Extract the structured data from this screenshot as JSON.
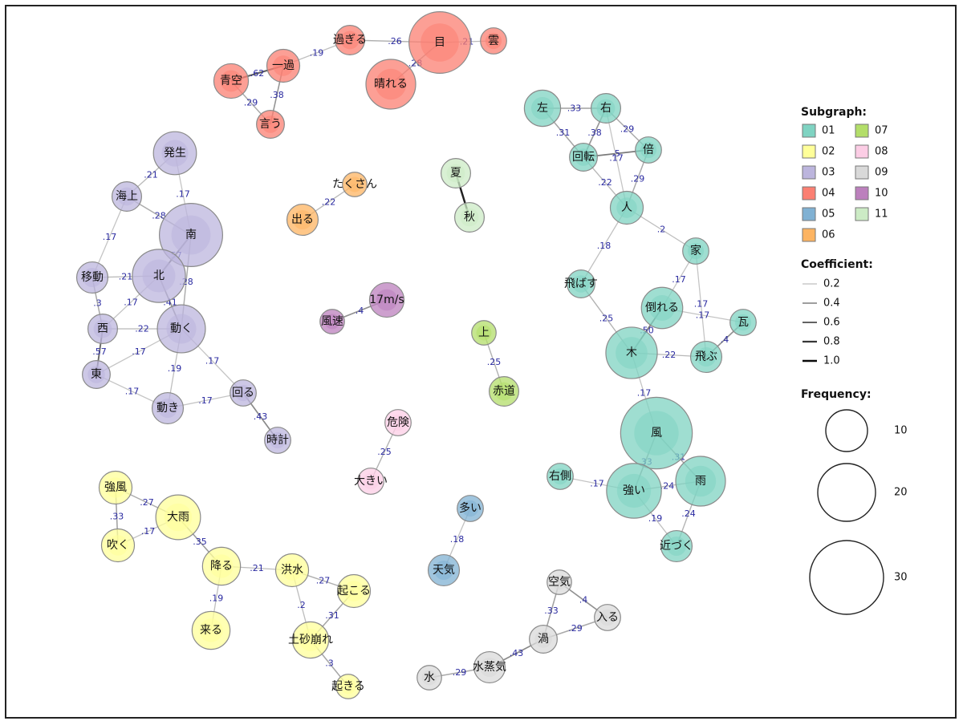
{
  "subgraph_colors": {
    "01": "#7fd3c2",
    "02": "#ffff99",
    "03": "#bcb5dd",
    "04": "#fb7f72",
    "05": "#80b1d3",
    "06": "#fdb462",
    "07": "#b3de69",
    "08": "#fccde5",
    "09": "#d9d9d9",
    "10": "#bc80bd",
    "11": "#ccebc5"
  },
  "nodes": [
    {
      "label": "目",
      "group": "04",
      "freq": 27
    },
    {
      "label": "雲",
      "group": "04",
      "freq": 6
    },
    {
      "label": "過ぎる",
      "group": "04",
      "freq": 8
    },
    {
      "label": "晴れる",
      "group": "04",
      "freq": 20
    },
    {
      "label": "一過",
      "group": "04",
      "freq": 10
    },
    {
      "label": "青空",
      "group": "04",
      "freq": 11
    },
    {
      "label": "言う",
      "group": "04",
      "freq": 7
    },
    {
      "label": "左",
      "group": "01",
      "freq": 12
    },
    {
      "label": "右",
      "group": "01",
      "freq": 8
    },
    {
      "label": "倍",
      "group": "01",
      "freq": 6
    },
    {
      "label": "回転",
      "group": "01",
      "freq": 7
    },
    {
      "label": "人",
      "group": "01",
      "freq": 10
    },
    {
      "label": "家",
      "group": "01",
      "freq": 6
    },
    {
      "label": "飛ばす",
      "group": "01",
      "freq": 7
    },
    {
      "label": "倒れる",
      "group": "01",
      "freq": 15
    },
    {
      "label": "瓦",
      "group": "01",
      "freq": 6
    },
    {
      "label": "木",
      "group": "01",
      "freq": 21
    },
    {
      "label": "飛ぶ",
      "group": "01",
      "freq": 9
    },
    {
      "label": "風",
      "group": "01",
      "freq": 33
    },
    {
      "label": "右側",
      "group": "01",
      "freq": 6
    },
    {
      "label": "強い",
      "group": "01",
      "freq": 23
    },
    {
      "label": "雨",
      "group": "01",
      "freq": 20
    },
    {
      "label": "近づく",
      "group": "01",
      "freq": 9
    },
    {
      "label": "発生",
      "group": "03",
      "freq": 16
    },
    {
      "label": "海上",
      "group": "03",
      "freq": 8
    },
    {
      "label": "南",
      "group": "03",
      "freq": 28
    },
    {
      "label": "北",
      "group": "03",
      "freq": 22
    },
    {
      "label": "移動",
      "group": "03",
      "freq": 9
    },
    {
      "label": "西",
      "group": "03",
      "freq": 8
    },
    {
      "label": "動く",
      "group": "03",
      "freq": 19
    },
    {
      "label": "東",
      "group": "03",
      "freq": 7
    },
    {
      "label": "動き",
      "group": "03",
      "freq": 9
    },
    {
      "label": "回る",
      "group": "03",
      "freq": 6
    },
    {
      "label": "時計",
      "group": "03",
      "freq": 6
    },
    {
      "label": "たくさん",
      "group": "06",
      "freq": 5
    },
    {
      "label": "出る",
      "group": "06",
      "freq": 9
    },
    {
      "label": "夏",
      "group": "11",
      "freq": 8
    },
    {
      "label": "秋",
      "group": "11",
      "freq": 8
    },
    {
      "label": "17m/s",
      "group": "10",
      "freq": 11
    },
    {
      "label": "風速",
      "group": "10",
      "freq": 5
    },
    {
      "label": "上",
      "group": "07",
      "freq": 5
    },
    {
      "label": "赤道",
      "group": "07",
      "freq": 8
    },
    {
      "label": "危険",
      "group": "08",
      "freq": 6
    },
    {
      "label": "大きい",
      "group": "08",
      "freq": 6
    },
    {
      "label": "多い",
      "group": "05",
      "freq": 6
    },
    {
      "label": "天気",
      "group": "05",
      "freq": 9
    },
    {
      "label": "強風",
      "group": "02",
      "freq": 10
    },
    {
      "label": "大雨",
      "group": "02",
      "freq": 17
    },
    {
      "label": "吹く",
      "group": "02",
      "freq": 10
    },
    {
      "label": "降る",
      "group": "02",
      "freq": 13
    },
    {
      "label": "洪水",
      "group": "02",
      "freq": 10
    },
    {
      "label": "起こる",
      "group": "02",
      "freq": 10
    },
    {
      "label": "来る",
      "group": "02",
      "freq": 13
    },
    {
      "label": "土砂崩れ",
      "group": "02",
      "freq": 12
    },
    {
      "label": "起きる",
      "group": "02",
      "freq": 5
    },
    {
      "label": "空気",
      "group": "09",
      "freq": 5
    },
    {
      "label": "入る",
      "group": "09",
      "freq": 6
    },
    {
      "label": "渦",
      "group": "09",
      "freq": 7
    },
    {
      "label": "水蒸気",
      "group": "09",
      "freq": 9
    },
    {
      "label": "水",
      "group": "09",
      "freq": 5
    }
  ],
  "edges": [
    {
      "source": "目",
      "target": "雲",
      "coef": 0.21,
      "label": ".21"
    },
    {
      "source": "目",
      "target": "過ぎる",
      "coef": 0.26,
      "label": ".26"
    },
    {
      "source": "目",
      "target": "晴れる",
      "coef": 0.28,
      "label": ".28"
    },
    {
      "source": "過ぎる",
      "target": "一過",
      "coef": 0.19,
      "label": ".19"
    },
    {
      "source": "一過",
      "target": "青空",
      "coef": 0.62,
      "label": ".62"
    },
    {
      "source": "一過",
      "target": "言う",
      "coef": 0.38,
      "label": ".38"
    },
    {
      "source": "青空",
      "target": "言う",
      "coef": 0.29,
      "label": ".29"
    },
    {
      "source": "左",
      "target": "右",
      "coef": 0.33,
      "label": ".33"
    },
    {
      "source": "左",
      "target": "回転",
      "coef": 0.31,
      "label": ".31"
    },
    {
      "source": "右",
      "target": "回転",
      "coef": 0.38,
      "label": ".38"
    },
    {
      "source": "右",
      "target": "倍",
      "coef": 0.29,
      "label": ".29"
    },
    {
      "source": "回転",
      "target": "倍",
      "coef": 0.5,
      "label": ".5"
    },
    {
      "source": "右",
      "target": "人",
      "coef": 0.17,
      "label": ".17"
    },
    {
      "source": "倍",
      "target": "人",
      "coef": 0.29,
      "label": ".29"
    },
    {
      "source": "回転",
      "target": "人",
      "coef": 0.22,
      "label": ".22"
    },
    {
      "source": "人",
      "target": "家",
      "coef": 0.2,
      "label": ".2"
    },
    {
      "source": "人",
      "target": "飛ばす",
      "coef": 0.18,
      "label": ".18"
    },
    {
      "source": "家",
      "target": "倒れる",
      "coef": 0.17,
      "label": ".17"
    },
    {
      "source": "家",
      "target": "飛ぶ",
      "coef": 0.17,
      "label": ".17"
    },
    {
      "source": "倒れる",
      "target": "瓦",
      "coef": 0.17,
      "label": ".17"
    },
    {
      "source": "瓦",
      "target": "飛ぶ",
      "coef": 0.4,
      "label": ".4"
    },
    {
      "source": "飛ばす",
      "target": "木",
      "coef": 0.25,
      "label": ".25"
    },
    {
      "source": "倒れる",
      "target": "木",
      "coef": 0.5,
      "label": ".50"
    },
    {
      "source": "木",
      "target": "飛ぶ",
      "coef": 0.22,
      "label": ".22"
    },
    {
      "source": "木",
      "target": "風",
      "coef": 0.17,
      "label": ".17"
    },
    {
      "source": "風",
      "target": "強い",
      "coef": 0.33,
      "label": ".33"
    },
    {
      "source": "風",
      "target": "雨",
      "coef": 0.31,
      "label": ".31"
    },
    {
      "source": "右側",
      "target": "強い",
      "coef": 0.17,
      "label": ".17"
    },
    {
      "source": "強い",
      "target": "雨",
      "coef": 0.24,
      "label": ".24"
    },
    {
      "source": "強い",
      "target": "近づく",
      "coef": 0.19,
      "label": ".19"
    },
    {
      "source": "雨",
      "target": "近づく",
      "coef": 0.24,
      "label": ".24"
    },
    {
      "source": "発生",
      "target": "海上",
      "coef": 0.21,
      "label": ".21"
    },
    {
      "source": "発生",
      "target": "南",
      "coef": 0.17,
      "label": ".17"
    },
    {
      "source": "海上",
      "target": "南",
      "coef": 0.28,
      "label": ".28"
    },
    {
      "source": "海上",
      "target": "移動",
      "coef": 0.17,
      "label": ".17"
    },
    {
      "source": "南",
      "target": "北",
      "coef": 0.57,
      "label": ".57"
    },
    {
      "source": "南",
      "target": "動く",
      "coef": 0.28,
      "label": ".28"
    },
    {
      "source": "移動",
      "target": "北",
      "coef": 0.21,
      "label": ".21"
    },
    {
      "source": "移動",
      "target": "西",
      "coef": 0.3,
      "label": ".3"
    },
    {
      "source": "北",
      "target": "西",
      "coef": 0.17,
      "label": ".17"
    },
    {
      "source": "北",
      "target": "動く",
      "coef": 0.41,
      "label": ".41"
    },
    {
      "source": "西",
      "target": "動く",
      "coef": 0.22,
      "label": ".22"
    },
    {
      "source": "西",
      "target": "東",
      "coef": 0.57,
      "label": ".57"
    },
    {
      "source": "東",
      "target": "動く",
      "coef": 0.17,
      "label": ".17"
    },
    {
      "source": "東",
      "target": "動き",
      "coef": 0.17,
      "label": ".17"
    },
    {
      "source": "動く",
      "target": "動き",
      "coef": 0.19,
      "label": ".19"
    },
    {
      "source": "動く",
      "target": "回る",
      "coef": 0.17,
      "label": ".17"
    },
    {
      "source": "動き",
      "target": "回る",
      "coef": 0.17,
      "label": ".17"
    },
    {
      "source": "回る",
      "target": "時計",
      "coef": 0.43,
      "label": ".43"
    },
    {
      "source": "出る",
      "target": "たくさん",
      "coef": 0.22,
      "label": ".22"
    },
    {
      "source": "夏",
      "target": "秋",
      "coef": 0.9,
      "label": ""
    },
    {
      "source": "風速",
      "target": "17m/s",
      "coef": 0.4,
      "label": ".4"
    },
    {
      "source": "上",
      "target": "赤道",
      "coef": 0.25,
      "label": ".25"
    },
    {
      "source": "危険",
      "target": "大きい",
      "coef": 0.25,
      "label": ".25"
    },
    {
      "source": "多い",
      "target": "天気",
      "coef": 0.18,
      "label": ".18"
    },
    {
      "source": "強風",
      "target": "大雨",
      "coef": 0.27,
      "label": ".27"
    },
    {
      "source": "強風",
      "target": "吹く",
      "coef": 0.33,
      "label": ".33"
    },
    {
      "source": "吹く",
      "target": "大雨",
      "coef": 0.17,
      "label": ".17"
    },
    {
      "source": "大雨",
      "target": "降る",
      "coef": 0.35,
      "label": ".35"
    },
    {
      "source": "降る",
      "target": "洪水",
      "coef": 0.21,
      "label": ".21"
    },
    {
      "source": "降る",
      "target": "来る",
      "coef": 0.19,
      "label": ".19"
    },
    {
      "source": "洪水",
      "target": "起こる",
      "coef": 0.27,
      "label": ".27"
    },
    {
      "source": "洪水",
      "target": "土砂崩れ",
      "coef": 0.2,
      "label": ".2"
    },
    {
      "source": "起こる",
      "target": "土砂崩れ",
      "coef": 0.31,
      "label": ".31"
    },
    {
      "source": "土砂崩れ",
      "target": "起きる",
      "coef": 0.3,
      "label": ".3"
    },
    {
      "source": "空気",
      "target": "入る",
      "coef": 0.4,
      "label": ".4"
    },
    {
      "source": "空気",
      "target": "渦",
      "coef": 0.33,
      "label": ".33"
    },
    {
      "source": "入る",
      "target": "渦",
      "coef": 0.29,
      "label": ".29"
    },
    {
      "source": "渦",
      "target": "水蒸気",
      "coef": 0.43,
      "label": ".43"
    },
    {
      "source": "水蒸気",
      "target": "水",
      "coef": 0.29,
      "label": ".29"
    }
  ],
  "legend": {
    "subgraph_title": "Subgraph:",
    "subgraph_items": [
      "01",
      "02",
      "03",
      "04",
      "05",
      "06",
      "07",
      "08",
      "09",
      "10",
      "11"
    ],
    "coefficient_title": "Coefficient:",
    "coefficient_items": [
      {
        "label": "0.2",
        "value": 0.2
      },
      {
        "label": "0.4",
        "value": 0.4
      },
      {
        "label": "0.6",
        "value": 0.6
      },
      {
        "label": "0.8",
        "value": 0.8
      },
      {
        "label": "1.0",
        "value": 1.0
      }
    ],
    "frequency_title": "Frequency:",
    "frequency_items": [
      {
        "label": "10",
        "value": 10
      },
      {
        "label": "20",
        "value": 20
      },
      {
        "label": "30",
        "value": 30
      }
    ]
  }
}
